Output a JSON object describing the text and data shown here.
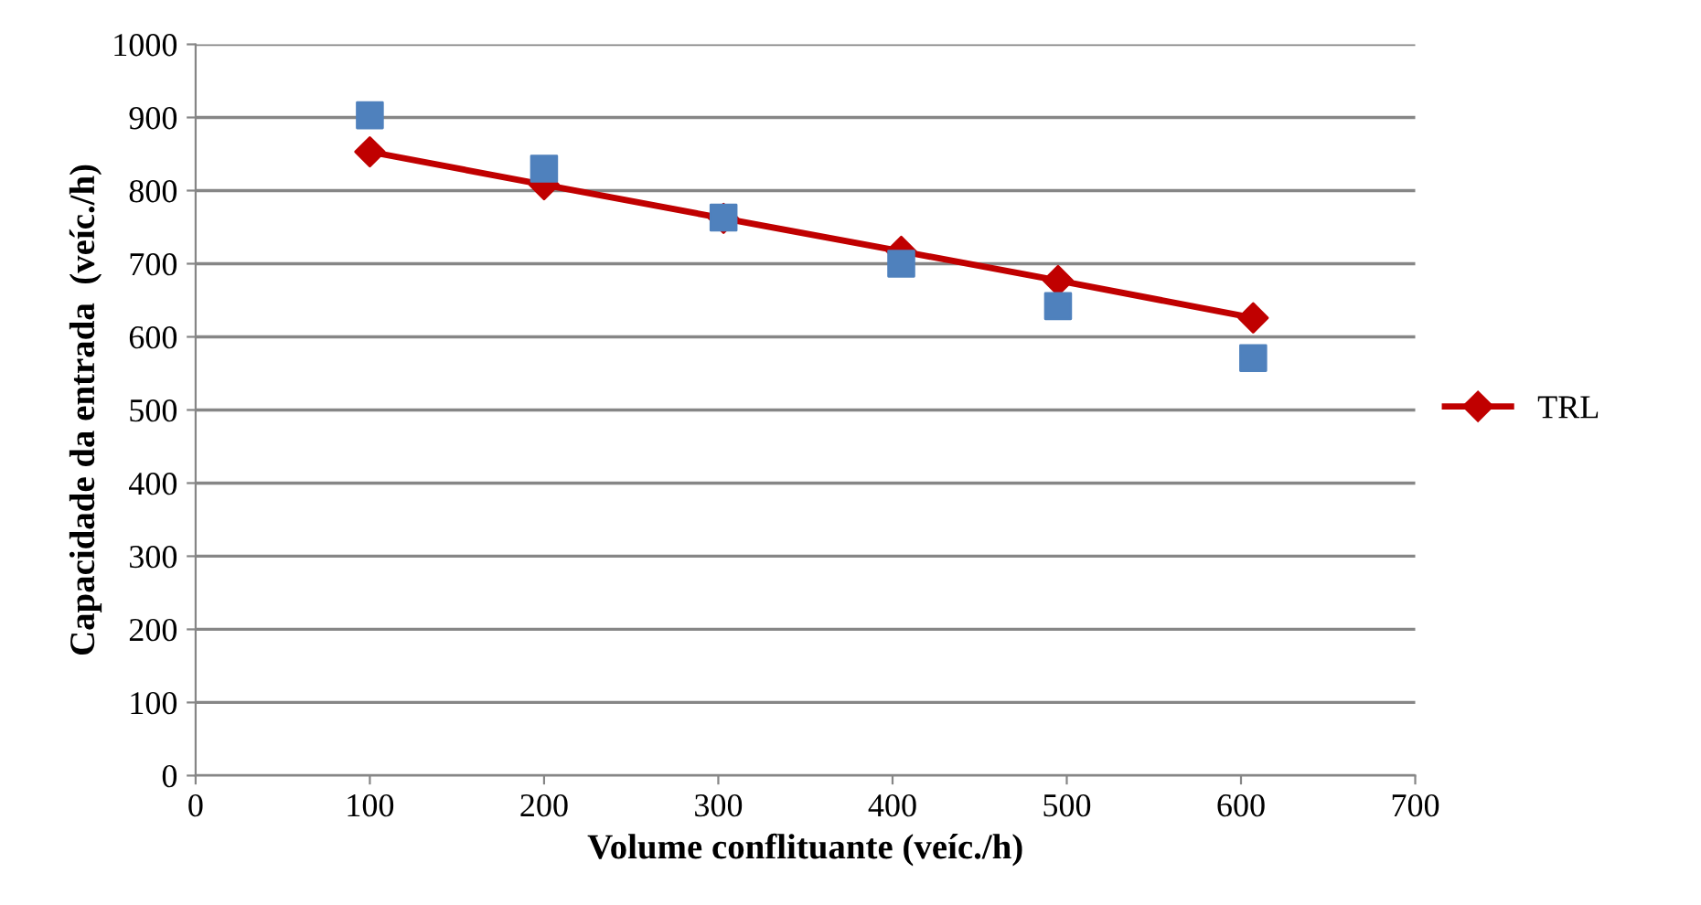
{
  "chart_data": {
    "type": "scatter",
    "xlabel": "Volume conflituante (veíc./h)",
    "ylabel": "Capacidade da entrada  (veíc./h)",
    "xlim": [
      0,
      700
    ],
    "xticks": [
      0,
      100,
      200,
      300,
      400,
      500,
      600,
      700
    ],
    "ylim": [
      0,
      1000
    ],
    "yticks": [
      0,
      100,
      200,
      300,
      400,
      500,
      600,
      700,
      800,
      900,
      1000
    ],
    "grid": "y",
    "legend": "right",
    "series": [
      {
        "marker": "square",
        "color": "#4f81bd",
        "x": [
          100,
          200,
          303,
          405,
          495,
          607
        ],
        "values": [
          903,
          830,
          763,
          700,
          642,
          571
        ]
      },
      {
        "type": "line",
        "name": "TRL",
        "marker": "diamond",
        "color": "#c00000",
        "x": [
          100,
          200,
          303,
          405,
          495,
          607
        ],
        "values": [
          853,
          808,
          762,
          717,
          677,
          626
        ]
      }
    ]
  }
}
